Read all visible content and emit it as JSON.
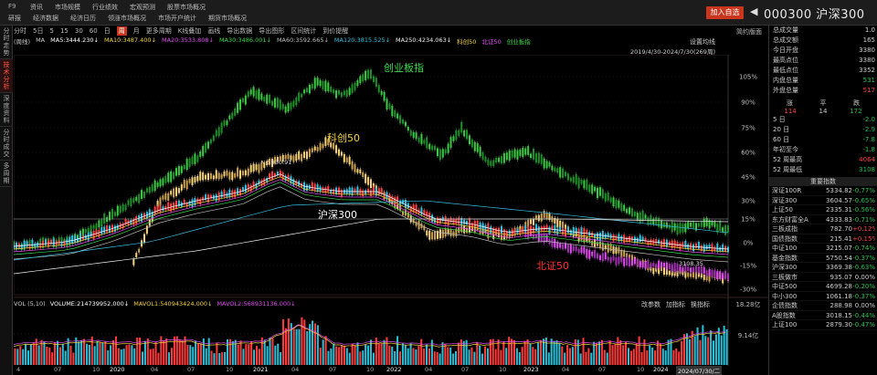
{
  "top": {
    "app_name": "F9",
    "menu_row1": [
      "资讯",
      "市场规模",
      "行业绩效",
      "宏观预测",
      "股票市场概况"
    ],
    "menu_row2": [
      "研报",
      "经济数据",
      "经济日历",
      "领涨市场概况",
      "市场开户统计",
      "期货市场概况"
    ],
    "add_favorite": "加入自选",
    "back": "◀",
    "stock_title": "000300 沪深300"
  },
  "left_tabs": [
    {
      "label": "分时走势",
      "active": false
    },
    {
      "label": "技术分析",
      "active": true
    },
    {
      "label": "深度资料",
      "active": false
    },
    {
      "label": "分时成交",
      "active": false
    },
    {
      "label": "多周期",
      "active": false
    }
  ],
  "toolbar": [
    "分时",
    "5日",
    "5",
    "15",
    "30",
    "60",
    "日",
    "周",
    "月",
    "更多周期",
    "K线叠加",
    "画线",
    "导出数据",
    "导出图形",
    "区间统计",
    "到价提醒"
  ],
  "toolbar_active": "周",
  "ma_row": [
    {
      "text": "(周线)",
      "color": "#cccccc"
    },
    {
      "text": "MA",
      "color": "#cccccc"
    },
    {
      "text": "MA5:3444.230↓",
      "color": "#ffffff"
    },
    {
      "text": "MA10:3487.400↓",
      "color": "#f5d23a"
    },
    {
      "text": "MA20:3533.808↓",
      "color": "#e04cf0"
    },
    {
      "text": "MA30:3486.001↓",
      "color": "#3ad94a"
    },
    {
      "text": "MA60:3592.665↓",
      "color": "#bbbbbb"
    },
    {
      "text": "MA120:3815.525↓",
      "color": "#33c0e0"
    },
    {
      "text": "MA250:4234.063↓",
      "color": "#eeeeee"
    },
    {
      "text": "科创50",
      "color": "#f5d23a"
    },
    {
      "text": "北证50",
      "color": "#e04cf0"
    },
    {
      "text": "创业板指",
      "color": "#3ad94a"
    }
  ],
  "settings_label": "设置均线",
  "range_label": "2019/4/30-2024/7/30(269周)",
  "right_scale_title": "简约版面",
  "chart_labels": {
    "cyb": "创业板指",
    "kc50": "科创50",
    "hs300": "沪深300",
    "bz50": "北证50",
    "high_mark": "5930.91",
    "low_mark": "3108.35"
  },
  "pct_ticks": [
    "105%",
    "90%",
    "75%",
    "60%",
    "45%",
    "30%",
    "15%",
    "0%",
    "-15%",
    "-30%"
  ],
  "volume": {
    "label": "VOL (5,10)",
    "volume": "VOLUME:214739952.000↓",
    "mavol1": "MAVOL1:540943424.000↓",
    "mavol2": "MAVOL2:568931136.000↓",
    "tools": [
      "改参数",
      "加指标",
      "换指标"
    ],
    "top_tick": "18.28亿",
    "mid_tick": "9.14亿"
  },
  "date_axis": [
    "4",
    "07",
    "10",
    "2020",
    "04",
    "07",
    "10",
    "2021",
    "04",
    "07",
    "10",
    "2022",
    "04",
    "07",
    "10",
    "2023",
    "04",
    "07",
    "10",
    "2024"
  ],
  "current_date": "2024/07/30/二",
  "stats": [
    {
      "label": "总成交量",
      "value": "1.0"
    },
    {
      "label": "总成交额",
      "value": "165"
    },
    {
      "label": "今日开盘",
      "value": "3380"
    },
    {
      "label": "最高点位",
      "value": "3380"
    },
    {
      "label": "最低点位",
      "value": "3352"
    },
    {
      "label": "内盘总量",
      "value": "531"
    },
    {
      "label": "外盘总量",
      "value": "517"
    }
  ],
  "updown": {
    "labels": [
      "涨",
      "平",
      "跌"
    ],
    "values": [
      "114",
      "14",
      "172"
    ]
  },
  "periods": [
    {
      "label": "5 日",
      "value": "-2.0"
    },
    {
      "label": "20 日",
      "value": "-2.9"
    },
    {
      "label": "60 日",
      "value": "-7.8"
    },
    {
      "label": "年初至今",
      "value": "-1.8"
    },
    {
      "label": "52 周最高",
      "value": "4064"
    },
    {
      "label": "52 周最低",
      "value": "3108"
    }
  ],
  "index_header": "重要指数",
  "indices": [
    {
      "name": "深证100R",
      "value": "5334.82",
      "chg": "-0.77%"
    },
    {
      "name": "深证300",
      "value": "3604.57",
      "chg": "-0.65%"
    },
    {
      "name": "上证50",
      "value": "2335.31",
      "chg": "-0.56%"
    },
    {
      "name": "东方财富全A",
      "value": "4333.83",
      "chg": "-0.71%"
    },
    {
      "name": "三板成指",
      "value": "782.70",
      "chg": "+0.12%"
    },
    {
      "name": "国债指数",
      "value": "215.41",
      "chg": "+0.15%"
    },
    {
      "name": "中证100",
      "value": "3215.07",
      "chg": "-0.74%"
    },
    {
      "name": "基金指数",
      "value": "5750.54",
      "chg": "-0.37%"
    },
    {
      "name": "沪深300",
      "value": "3369.38",
      "chg": "-0.63%"
    },
    {
      "name": "三板做市",
      "value": "935.07",
      "chg": "0.00%"
    },
    {
      "name": "中证500",
      "value": "4699.28",
      "chg": "-0.20%"
    },
    {
      "name": "中小300",
      "value": "1061.18",
      "chg": "-0.37%"
    },
    {
      "name": "企债指数",
      "value": "288.98",
      "chg": "0.00%"
    },
    {
      "name": "A股指数",
      "value": "3018.15",
      "chg": "-0.44%"
    },
    {
      "name": "上证100",
      "value": "2879.30",
      "chg": "-0.47%"
    }
  ]
}
